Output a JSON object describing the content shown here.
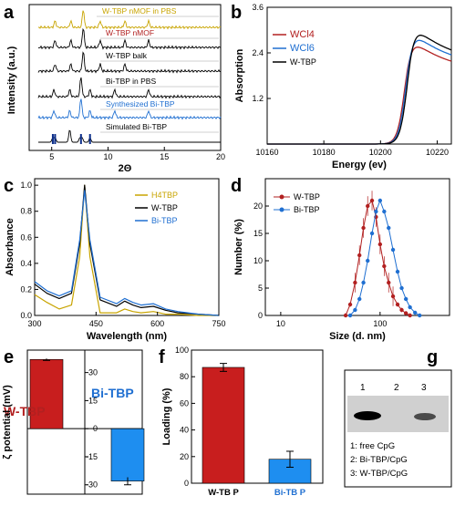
{
  "panels": {
    "a": {
      "letter": "a",
      "xlabel": "2Θ",
      "ylabel": "Intensity (a.u.)",
      "xticks": [
        "5",
        "10",
        "15",
        "20"
      ],
      "traces": [
        {
          "label": "W-TBP nMOF in PBS",
          "color": "#c8a400",
          "label_color": "#c8a400"
        },
        {
          "label": "W-TBP nMOF",
          "color": "#000000",
          "label_color": "#b22020"
        },
        {
          "label": "W-TBP balk",
          "color": "#000000",
          "label_color": "#000000"
        },
        {
          "label": "Bi-TBP in PBS",
          "color": "#000000",
          "label_color": "#000000"
        },
        {
          "label": "Synthesized Bi-TBP",
          "color": "#1f6fd1",
          "label_color": "#1f6fd1"
        },
        {
          "label": "Simulated Bi-TBP",
          "color": "#000000",
          "label_color": "#000000"
        }
      ]
    },
    "b": {
      "letter": "b",
      "xlabel": "Energy (ev)",
      "ylabel": "Absorption",
      "xticks": [
        "10160",
        "10180",
        "10200",
        "10220"
      ],
      "yticks": [
        "1.2",
        "2.4",
        "3.6"
      ],
      "legend": [
        {
          "label": "WCl4",
          "color": "#b22020"
        },
        {
          "label": "WCl6",
          "color": "#1f6fd1"
        },
        {
          "label": "W-TBP",
          "color": "#000000"
        }
      ]
    },
    "c": {
      "letter": "c",
      "xlabel": "Wavelength (nm)",
      "ylabel": "Absorbance",
      "xticks": [
        "300",
        "450",
        "600",
        "750"
      ],
      "yticks": [
        "0.0",
        "0.2",
        "0.4",
        "0.6",
        "0.8",
        "1.0"
      ],
      "legend": [
        {
          "label": "H4TBP",
          "color": "#c8a400"
        },
        {
          "label": "W-TBP",
          "color": "#000000"
        },
        {
          "label": "Bi-TBP",
          "color": "#1f6fd1"
        }
      ]
    },
    "d": {
      "letter": "d",
      "xlabel": "Size (d. nm)",
      "ylabel": "Number (%)",
      "xticks": [
        "10",
        "100"
      ],
      "yticks": [
        "0",
        "5",
        "10",
        "15",
        "20"
      ],
      "legend": [
        {
          "label": "W-TBP",
          "color": "#b22020"
        },
        {
          "label": "Bi-TBP",
          "color": "#1f6fd1"
        }
      ]
    },
    "e": {
      "letter": "e",
      "ylabel": "ζ potential (mV)",
      "yticks": [
        "30",
        "15",
        "0",
        "-15",
        "-30"
      ],
      "label_w": "W-TBP",
      "label_bi": "Bi-TBP"
    },
    "f": {
      "letter": "f",
      "ylabel": "Loading (%)",
      "yticks": [
        "0",
        "20",
        "40",
        "60",
        "80",
        "100"
      ],
      "xticks": [
        "W-TB P",
        "Bi-TB P"
      ]
    },
    "g": {
      "letter": "g",
      "lane_numbers": [
        "1",
        "2",
        "3"
      ],
      "legend_lines": [
        "1: free CpG",
        "2: Bi-TBP/CpG",
        "3: W-TBP/CpG"
      ]
    }
  },
  "chart_data": [
    {
      "panel": "a",
      "type": "line",
      "title": "",
      "xlabel": "2Θ",
      "ylabel": "Intensity (a.u.)",
      "xlim": [
        3,
        20
      ],
      "series": [
        {
          "name": "W-TBP nMOF in PBS",
          "peaks_2theta": [
            5.3,
            6.7,
            7.8,
            9.3,
            11.5,
            13.6
          ]
        },
        {
          "name": "W-TBP nMOF",
          "peaks_2theta": [
            5.3,
            6.7,
            7.8,
            9.3,
            11.5,
            13.6
          ]
        },
        {
          "name": "W-TBP balk",
          "peaks_2theta": [
            5.3,
            6.7,
            7.8,
            9.3,
            11.5
          ]
        },
        {
          "name": "Bi-TBP in PBS",
          "peaks_2theta": [
            5.2,
            6.6,
            7.6,
            8.4,
            10.6,
            13.6
          ]
        },
        {
          "name": "Synthesized Bi-TBP",
          "peaks_2theta": [
            5.2,
            6.6,
            7.6,
            8.4,
            10.6,
            13.6
          ]
        },
        {
          "name": "Simulated Bi-TBP",
          "peaks_2theta": [
            5.1,
            5.3,
            6.6,
            7.5,
            7.7,
            8.4
          ]
        }
      ]
    },
    {
      "panel": "b",
      "type": "line",
      "xlabel": "Energy (ev)",
      "ylabel": "Absorption",
      "xlim": [
        10160,
        10225
      ],
      "ylim": [
        0,
        3.6
      ],
      "series": [
        {
          "name": "WCl4",
          "edge_ev": 10208.5,
          "peak_ev": 10209.5,
          "peak": 2.85
        },
        {
          "name": "WCl6",
          "edge_ev": 10209.0,
          "peak_ev": 10210.0,
          "peak": 3.05
        },
        {
          "name": "W-TBP",
          "edge_ev": 10209.5,
          "peak_ev": 10210.5,
          "peak": 3.2
        }
      ]
    },
    {
      "panel": "c",
      "type": "line",
      "xlabel": "Wavelength (nm)",
      "ylabel": "Absorbance",
      "xlim": [
        300,
        750
      ],
      "ylim": [
        0,
        1.05
      ],
      "series": [
        {
          "name": "H4TBP",
          "x": [
            300,
            330,
            360,
            390,
            410,
            422,
            435,
            460,
            500,
            520,
            540,
            560,
            590,
            620,
            650,
            700,
            750
          ],
          "y": [
            0.16,
            0.1,
            0.05,
            0.08,
            0.45,
            1.0,
            0.45,
            0.02,
            0.02,
            0.05,
            0.03,
            0.02,
            0.03,
            0.01,
            0.01,
            0.0,
            0.0
          ]
        },
        {
          "name": "W-TBP",
          "x": [
            300,
            330,
            360,
            390,
            410,
            422,
            435,
            460,
            500,
            520,
            540,
            560,
            590,
            620,
            650,
            700,
            750
          ],
          "y": [
            0.24,
            0.17,
            0.13,
            0.17,
            0.55,
            1.0,
            0.55,
            0.12,
            0.07,
            0.11,
            0.08,
            0.06,
            0.07,
            0.04,
            0.02,
            0.01,
            0.0
          ]
        },
        {
          "name": "Bi-TBP",
          "x": [
            300,
            330,
            360,
            390,
            410,
            422,
            435,
            460,
            500,
            520,
            540,
            560,
            590,
            620,
            650,
            700,
            750
          ],
          "y": [
            0.26,
            0.19,
            0.15,
            0.19,
            0.58,
            0.96,
            0.58,
            0.14,
            0.09,
            0.13,
            0.1,
            0.08,
            0.09,
            0.05,
            0.03,
            0.01,
            0.0
          ]
        }
      ]
    },
    {
      "panel": "d",
      "type": "line",
      "xlabel": "Size (d. nm)",
      "ylabel": "Number (%)",
      "xscale": "log",
      "ylim": [
        0,
        25
      ],
      "series": [
        {
          "name": "W-TBP",
          "x": [
            45,
            50,
            56,
            62,
            68,
            75,
            83,
            91,
            100,
            110,
            122,
            135,
            150,
            165,
            182,
            200
          ],
          "y": [
            0,
            2,
            6,
            11,
            16,
            20,
            21,
            18,
            13,
            9,
            6,
            3.5,
            2,
            1,
            0.4,
            0
          ]
        },
        {
          "name": "Bi-TBP",
          "x": [
            50,
            56,
            62,
            68,
            75,
            83,
            91,
            100,
            110,
            122,
            135,
            150,
            165,
            182,
            200,
            225,
            250
          ],
          "y": [
            0,
            1,
            3,
            6,
            10,
            15,
            19,
            21,
            19,
            16,
            12,
            8,
            5,
            3,
            1.5,
            0.5,
            0
          ]
        }
      ]
    },
    {
      "panel": "e",
      "type": "bar",
      "ylabel": "ζ potential (mV)",
      "categories": [
        "W-TBP",
        "Bi-TBP"
      ],
      "values": [
        37,
        -28
      ],
      "errors": [
        0.5,
        2
      ],
      "ylim": [
        -35,
        42
      ]
    },
    {
      "panel": "f",
      "type": "bar",
      "ylabel": "Loading (%)",
      "categories": [
        "W-TB P",
        "Bi-TB P"
      ],
      "values": [
        87,
        18
      ],
      "errors": [
        3,
        6
      ],
      "ylim": [
        0,
        100
      ]
    }
  ],
  "colors": {
    "red": "#b22020",
    "blue": "#1f6fd1",
    "yellow": "#c8a400",
    "black": "#000000"
  }
}
